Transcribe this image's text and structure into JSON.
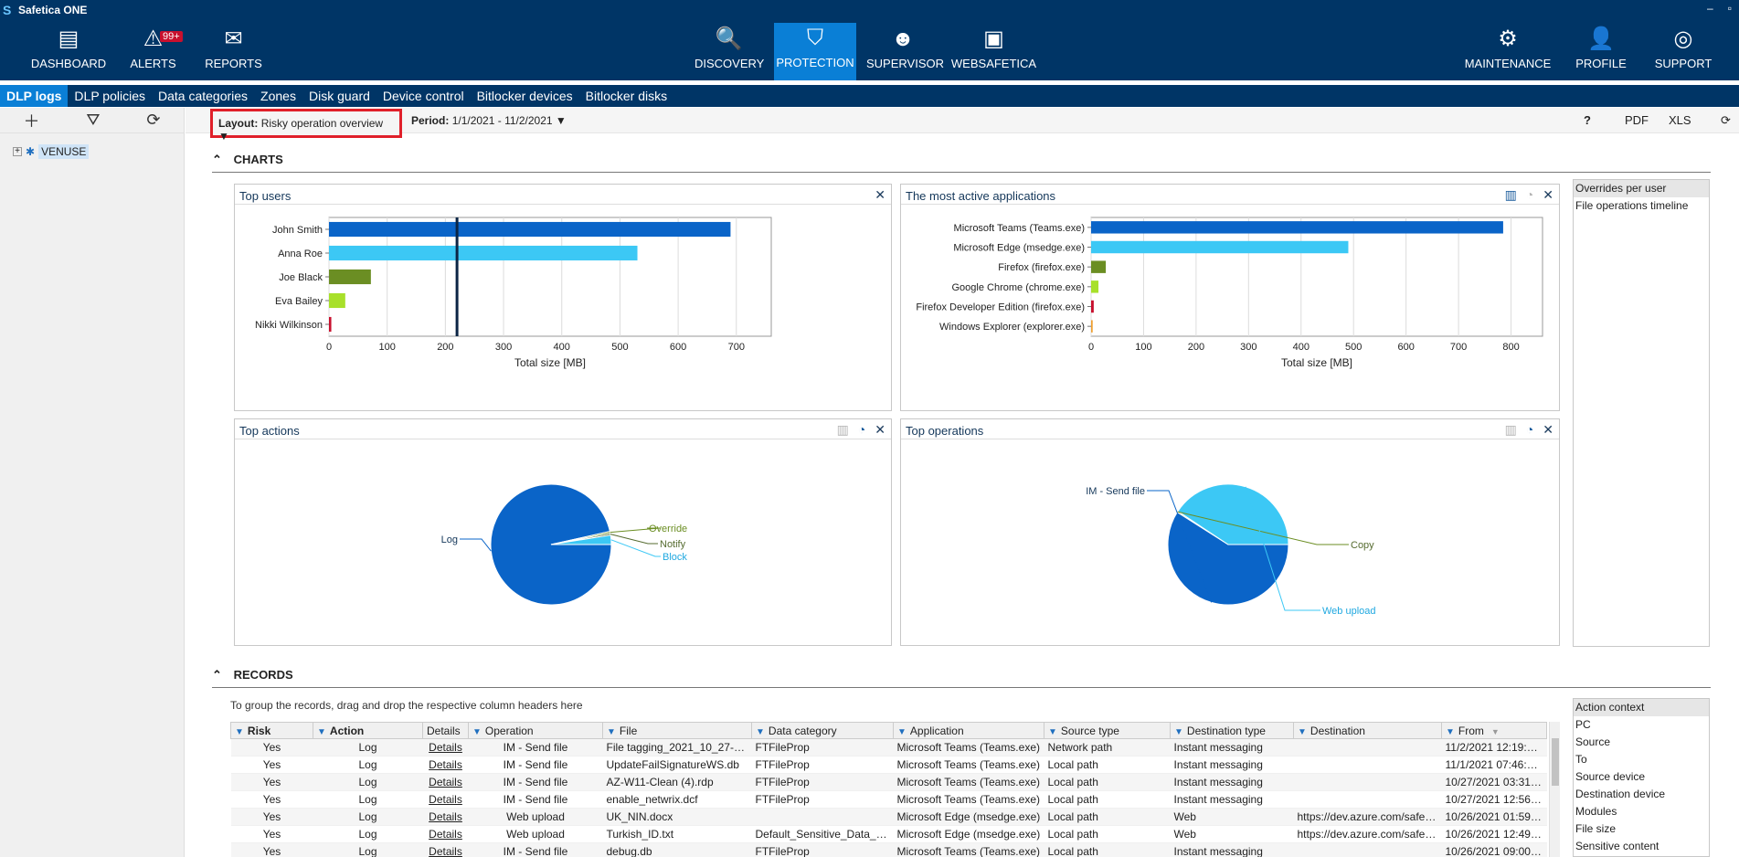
{
  "app": {
    "title": "Safetica ONE",
    "logo": "S"
  },
  "window_controls": [
    "–",
    "▫"
  ],
  "nav": {
    "left": [
      {
        "label": "DASHBOARD",
        "icon": "dashboard-icon",
        "glyph": "▤"
      },
      {
        "label": "ALERTS",
        "icon": "alert-icon",
        "glyph": "⚠",
        "badge": "99+"
      },
      {
        "label": "REPORTS",
        "icon": "mail-icon",
        "glyph": "✉"
      }
    ],
    "center": [
      {
        "label": "DISCOVERY",
        "icon": "discovery-icon",
        "glyph": "🔍"
      },
      {
        "label": "PROTECTION",
        "icon": "shield-icon",
        "glyph": "⛉",
        "active": true
      },
      {
        "label": "SUPERVISOR",
        "icon": "supervisor-icon",
        "glyph": "☻"
      },
      {
        "label": "WEBSAFETICA",
        "icon": "websafetica-icon",
        "glyph": "▣"
      }
    ],
    "right": [
      {
        "label": "MAINTENANCE",
        "icon": "gear-icon",
        "glyph": "⚙"
      },
      {
        "label": "PROFILE",
        "icon": "profile-icon",
        "glyph": "👤"
      },
      {
        "label": "SUPPORT",
        "icon": "support-icon",
        "glyph": "◎"
      }
    ]
  },
  "subnav": [
    "DLP logs",
    "DLP policies",
    "Data categories",
    "Zones",
    "Disk guard",
    "Device control",
    "Bitlocker devices",
    "Bitlocker disks"
  ],
  "tree": {
    "root": "VENUSE"
  },
  "toolbar": {
    "layout_label": "Layout:",
    "layout_value": "Risky operation overview",
    "period_label": "Period:",
    "period_value": "1/1/2021 - 11/2/2021",
    "help": "?",
    "pdf": "PDF",
    "xls": "XLS"
  },
  "sections": {
    "charts": "CHARTS",
    "records": "RECORDS"
  },
  "charts_side": {
    "items": [
      "Overrides per user",
      "File operations timeline"
    ]
  },
  "chart_data": [
    {
      "type": "bar",
      "orientation": "horizontal",
      "title": "Top users",
      "categories": [
        "John Smith",
        "Anna Roe",
        "Joe Black",
        "Eva Bailey",
        "Nikki Wilkinson"
      ],
      "values": [
        690,
        530,
        72,
        28,
        4
      ],
      "colors": [
        "#0a64c8",
        "#3cc8f5",
        "#6b8e23",
        "#a8e02a",
        "#c8102e"
      ],
      "xlabel": "Total size [MB]",
      "ticks": [
        0,
        100,
        200,
        300,
        400,
        500,
        600,
        700
      ],
      "xlim": [
        0,
        760
      ],
      "reference_line": 220
    },
    {
      "type": "bar",
      "orientation": "horizontal",
      "title": "The most active applications",
      "categories": [
        "Microsoft Teams (Teams.exe)",
        "Microsoft Edge (msedge.exe)",
        "Firefox (firefox.exe)",
        "Google Chrome (chrome.exe)",
        "Firefox Developer Edition (firefox.exe)",
        "Windows Explorer (explorer.exe)"
      ],
      "values": [
        785,
        490,
        28,
        14,
        5,
        3
      ],
      "colors": [
        "#0a64c8",
        "#3cc8f5",
        "#6b8e23",
        "#a8e02a",
        "#c8102e",
        "#f0a030"
      ],
      "xlabel": "Total size [MB]",
      "ticks": [
        0,
        100,
        200,
        300,
        400,
        500,
        600,
        700,
        800
      ],
      "xlim": [
        0,
        860
      ]
    },
    {
      "type": "pie",
      "title": "Top actions",
      "labels": [
        "Log",
        "Override",
        "Notify",
        "Block"
      ],
      "values": [
        96.5,
        0.5,
        0.5,
        2.5
      ],
      "colors": [
        "#0a64c8",
        "#6b8e23",
        "#556b2f",
        "#3cc8f5"
      ],
      "label_colors": [
        "#14375a",
        "#6b8e23",
        "#556b2f",
        "#1fa8e0"
      ]
    },
    {
      "type": "pie",
      "title": "Top operations",
      "labels": [
        "IM - Send file",
        "Copy",
        "Web upload"
      ],
      "values": [
        59,
        0.3,
        40.7
      ],
      "colors": [
        "#0a64c8",
        "#6b8e23",
        "#3cc8f5"
      ],
      "label_colors": [
        "#14375a",
        "#556b2f",
        "#1fa8e0"
      ]
    }
  ],
  "records": {
    "hint": "To group the records, drag and drop the respective column headers here",
    "columns": [
      "Risk",
      "Action",
      "Details",
      "Operation",
      "File",
      "Data category",
      "Application",
      "Source type",
      "Destination type",
      "Destination",
      "From"
    ],
    "rows": [
      [
        "Yes",
        "Log",
        "Details",
        "IM - Send file",
        "File tagging_2021_10_27-202...",
        "FTFileProp",
        "Microsoft Teams (Teams.exe)",
        "Network path",
        "Instant messaging",
        "",
        "11/2/2021 12:19:43 ..."
      ],
      [
        "Yes",
        "Log",
        "Details",
        "IM - Send file",
        "UpdateFailSignatureWS.db",
        "FTFileProp",
        "Microsoft Teams (Teams.exe)",
        "Local path",
        "Instant messaging",
        "",
        "11/1/2021 07:46:16 ..."
      ],
      [
        "Yes",
        "Log",
        "Details",
        "IM - Send file",
        "AZ-W11-Clean (4).rdp",
        "FTFileProp",
        "Microsoft Teams (Teams.exe)",
        "Local path",
        "Instant messaging",
        "",
        "10/27/2021 03:31:29..."
      ],
      [
        "Yes",
        "Log",
        "Details",
        "IM - Send file",
        "enable_netwrix.dcf",
        "FTFileProp",
        "Microsoft Teams (Teams.exe)",
        "Local path",
        "Instant messaging",
        "",
        "10/27/2021 12:56:27..."
      ],
      [
        "Yes",
        "Log",
        "Details",
        "Web upload",
        "UK_NIN.docx",
        "",
        "Microsoft Edge (msedge.exe)",
        "Local path",
        "Web",
        "https://dev.azure.com/safeti...",
        "10/26/2021 01:59:23..."
      ],
      [
        "Yes",
        "Log",
        "Details",
        "Web upload",
        "Turkish_ID.txt",
        "Default_Sensitive_Data_cat...",
        "Microsoft Edge (msedge.exe)",
        "Local path",
        "Web",
        "https://dev.azure.com/safeti...",
        "10/26/2021 12:49:48..."
      ],
      [
        "Yes",
        "Log",
        "Details",
        "IM - Send file",
        "debug.db",
        "FTFileProp",
        "Microsoft Teams (Teams.exe)",
        "Local path",
        "Instant messaging",
        "",
        "10/26/2021 09:00:22..."
      ]
    ]
  },
  "records_side": {
    "items": [
      "Action context",
      "PC",
      "Source",
      "To",
      "Source device",
      "Destination device",
      "Modules",
      "File size",
      "Sensitive content"
    ]
  }
}
